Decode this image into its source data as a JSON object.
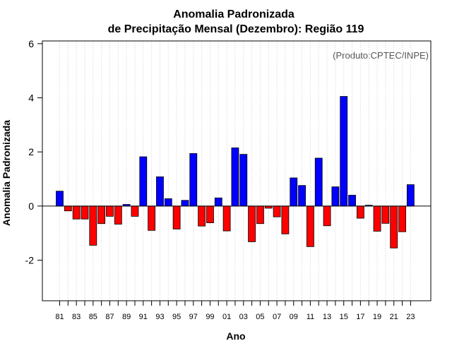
{
  "chart_data": {
    "type": "bar",
    "title_line1": "Anomalia Padronizada",
    "title_line2": "de Precipitação Mensal (Dezembro): Região 119",
    "xlabel": "Ano",
    "ylabel": "Anomalia Padronizada",
    "credit": "(Produto:CPTEC/INPE)",
    "ylim": [
      -3.5,
      6.1
    ],
    "yticks": [
      "-2",
      "0",
      "2",
      "4",
      "6"
    ],
    "positive_color": "#0000ff",
    "negative_color": "#ff0000",
    "categories": [
      "1981",
      "1982",
      "1983",
      "1984",
      "1985",
      "1986",
      "1987",
      "1988",
      "1989",
      "1990",
      "1991",
      "1992",
      "1993",
      "1994",
      "1995",
      "1996",
      "1997",
      "1998",
      "1999",
      "2000",
      "2001",
      "2002",
      "2003",
      "2004",
      "2005",
      "2006",
      "2007",
      "2008",
      "2009",
      "2010",
      "2011",
      "2012",
      "2013",
      "2014",
      "2015",
      "2016",
      "2017",
      "2018",
      "2019",
      "2020",
      "2021",
      "2022",
      "2023"
    ],
    "values": [
      0.55,
      -0.18,
      -0.48,
      -0.48,
      -1.45,
      -0.65,
      -0.38,
      -0.67,
      0.06,
      -0.38,
      1.82,
      -0.9,
      1.08,
      0.27,
      -0.85,
      0.21,
      1.94,
      -0.74,
      -0.62,
      0.3,
      -0.92,
      2.15,
      1.91,
      -1.32,
      -0.65,
      -0.08,
      -0.4,
      -1.03,
      1.04,
      0.76,
      -1.5,
      1.77,
      -0.73,
      0.71,
      4.05,
      0.4,
      -0.45,
      0.03,
      -0.93,
      -0.64,
      -1.55,
      -0.95,
      0.79
    ],
    "xtick_labels": [
      "81",
      "83",
      "85",
      "87",
      "89",
      "91",
      "93",
      "95",
      "97",
      "99",
      "01",
      "03",
      "05",
      "07",
      "09",
      "11",
      "13",
      "15",
      "17",
      "19",
      "21",
      "23"
    ],
    "grid": "vertical dotted"
  }
}
